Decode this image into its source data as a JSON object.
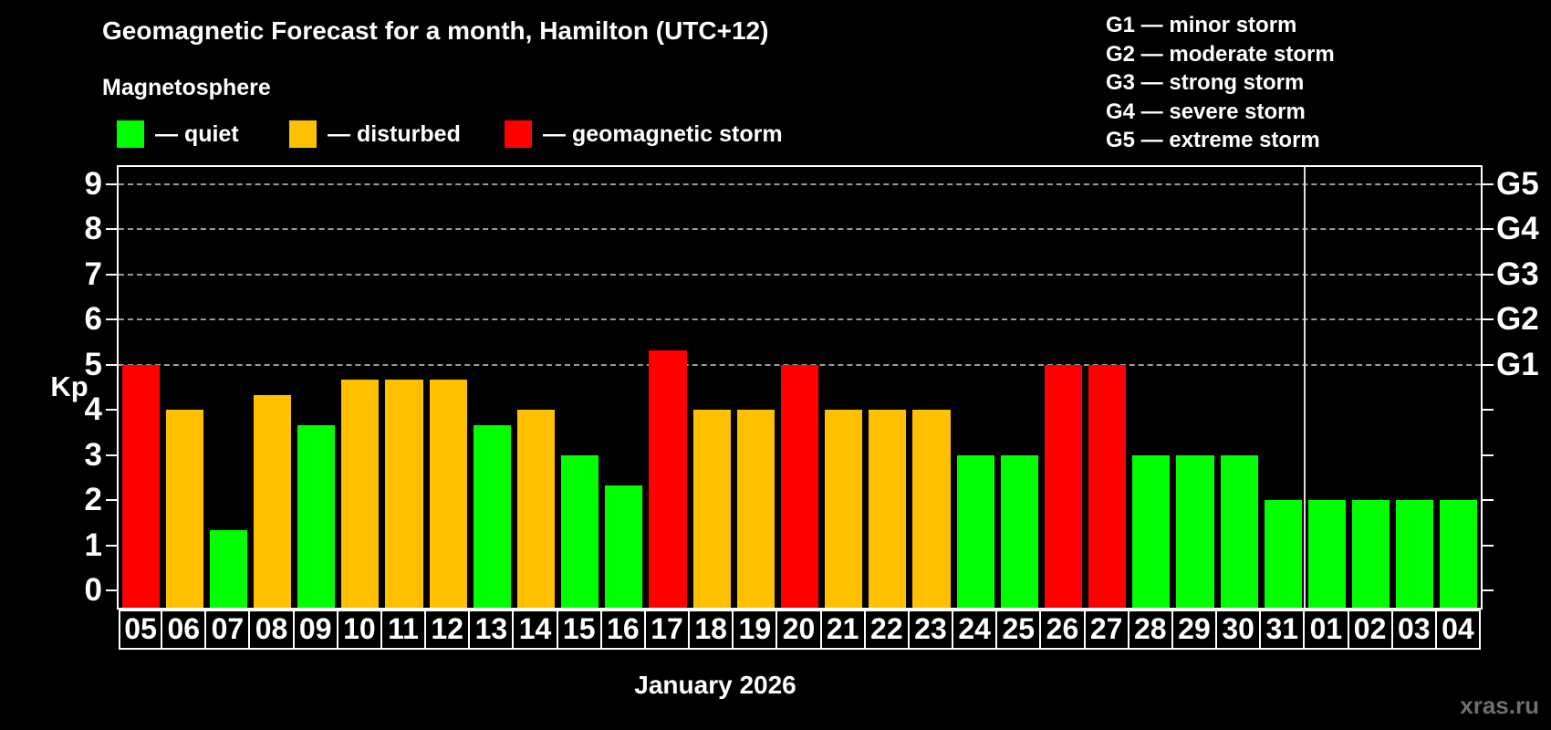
{
  "title": "Geomagnetic Forecast for a month, Hamilton (UTC+12)",
  "subtitle": "Magnetosphere",
  "month_label": "January 2026",
  "watermark": "xras.ru",
  "colors": {
    "background": "#000000",
    "text": "#ffffff",
    "grid": "#9a9a9a",
    "frame": "#ffffff",
    "quiet": "#00ff00",
    "disturbed": "#ffc000",
    "storm": "#ff0000",
    "watermark_color": "#6f6f6f"
  },
  "legend": {
    "items": [
      {
        "key": "quiet",
        "label": "— quiet",
        "color": "#00ff00",
        "x": 0
      },
      {
        "key": "disturbed",
        "label": "— disturbed",
        "color": "#ffc000",
        "x": 189
      },
      {
        "key": "storm",
        "label": "— geomagnetic storm",
        "color": "#ff0000",
        "x": 425
      }
    ]
  },
  "storm_scale": {
    "lines": [
      "G1 — minor storm",
      "G2 — moderate storm",
      "G3 — strong storm",
      "G4 — severe storm",
      "G5 — extreme storm"
    ]
  },
  "y_axis": {
    "label": "Kp",
    "ticks": [
      0,
      1,
      2,
      3,
      4,
      5,
      6,
      7,
      8,
      9
    ]
  },
  "right_axis": {
    "labels": [
      {
        "kp": 5,
        "text": "G1"
      },
      {
        "kp": 6,
        "text": "G2"
      },
      {
        "kp": 7,
        "text": "G3"
      },
      {
        "kp": 8,
        "text": "G4"
      },
      {
        "kp": 9,
        "text": "G5"
      }
    ]
  },
  "chart_data": {
    "type": "bar",
    "title": "Geomagnetic Forecast for a month, Hamilton (UTC+12)",
    "xlabel": "January 2026",
    "ylabel": "Kp",
    "ylim": [
      0,
      9
    ],
    "grid": "horizontal dashed lines at G-storm levels only",
    "gridlines_at": [
      5,
      6,
      7,
      8,
      9
    ],
    "legend_position": "top-left",
    "categories": [
      "05",
      "06",
      "07",
      "08",
      "09",
      "10",
      "11",
      "12",
      "13",
      "14",
      "15",
      "16",
      "17",
      "18",
      "19",
      "20",
      "21",
      "22",
      "23",
      "24",
      "25",
      "26",
      "27",
      "28",
      "29",
      "30",
      "31",
      "01",
      "02",
      "03",
      "04"
    ],
    "values": [
      5,
      4,
      1.33,
      4.33,
      3.67,
      4.67,
      4.67,
      4.67,
      3.67,
      4,
      3,
      2.33,
      5.33,
      4,
      4,
      5,
      4,
      4,
      4,
      3,
      3,
      5,
      5,
      3,
      3,
      3,
      2,
      2,
      2,
      2,
      2
    ],
    "statuses": [
      "storm",
      "disturbed",
      "quiet",
      "disturbed",
      "quiet",
      "disturbed",
      "disturbed",
      "disturbed",
      "quiet",
      "disturbed",
      "quiet",
      "quiet",
      "storm",
      "disturbed",
      "disturbed",
      "storm",
      "disturbed",
      "disturbed",
      "disturbed",
      "quiet",
      "quiet",
      "storm",
      "storm",
      "quiet",
      "quiet",
      "quiet",
      "quiet",
      "quiet",
      "quiet",
      "quiet",
      "quiet"
    ],
    "month_boundary_after_index": 26
  }
}
